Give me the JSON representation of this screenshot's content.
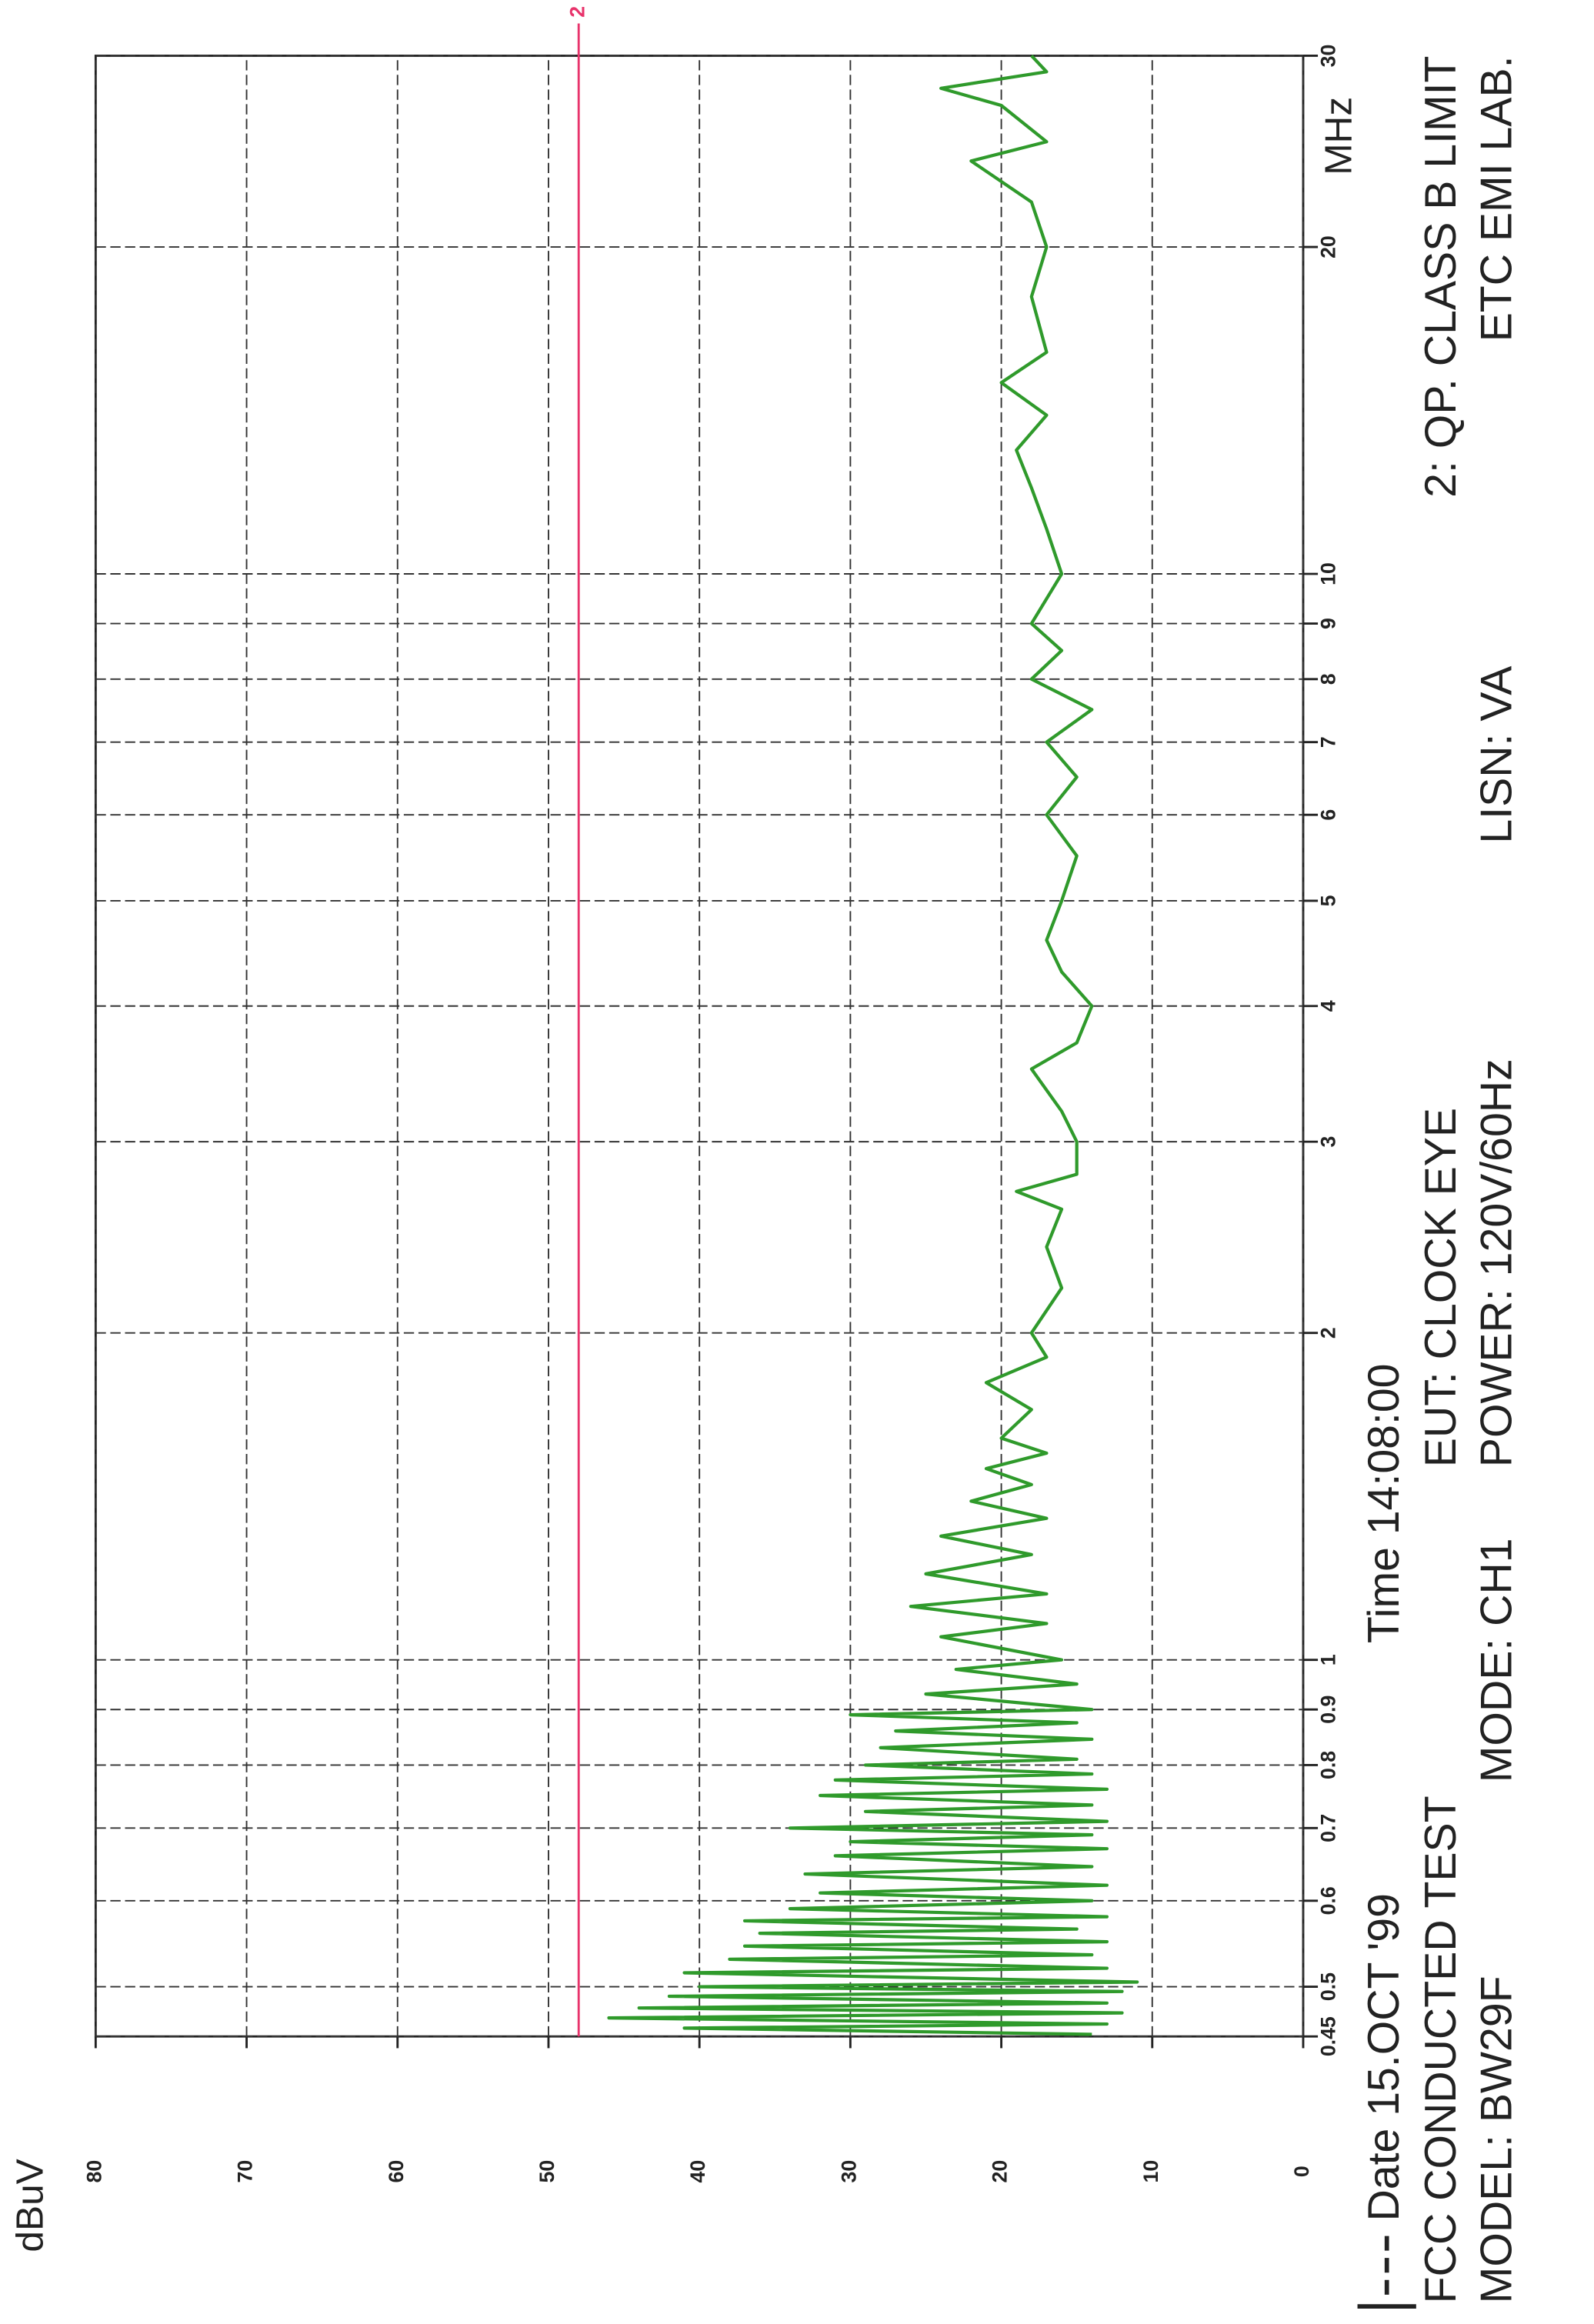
{
  "chart_data": {
    "type": "line",
    "ylabel": "dBuV",
    "xlabel": "MHz",
    "xlog": true,
    "grid": true,
    "xlim": [
      0.45,
      30
    ],
    "ylim": [
      0,
      80
    ],
    "xticks": [
      0.45,
      0.5,
      0.6,
      0.7,
      0.8,
      0.9,
      1,
      2,
      3,
      4,
      5,
      6,
      7,
      8,
      9,
      10,
      20,
      30
    ],
    "yticks": [
      0,
      10,
      20,
      30,
      40,
      50,
      60,
      70,
      80
    ],
    "color": "#2f9a2b",
    "x": [
      0.452,
      0.458,
      0.462,
      0.468,
      0.473,
      0.478,
      0.483,
      0.49,
      0.495,
      0.5,
      0.505,
      0.515,
      0.52,
      0.53,
      0.535,
      0.545,
      0.55,
      0.56,
      0.565,
      0.575,
      0.58,
      0.59,
      0.6,
      0.61,
      0.62,
      0.635,
      0.645,
      0.66,
      0.67,
      0.68,
      0.69,
      0.7,
      0.71,
      0.725,
      0.735,
      0.75,
      0.76,
      0.775,
      0.785,
      0.8,
      0.81,
      0.83,
      0.845,
      0.86,
      0.875,
      0.89,
      0.9,
      0.93,
      0.95,
      0.98,
      1.0,
      1.05,
      1.08,
      1.12,
      1.15,
      1.2,
      1.25,
      1.3,
      1.35,
      1.4,
      1.45,
      1.5,
      1.55,
      1.6,
      1.7,
      1.8,
      1.9,
      2.0,
      2.2,
      2.4,
      2.6,
      2.7,
      2.8,
      3.0,
      3.2,
      3.5,
      3.7,
      4.0,
      4.3,
      4.6,
      5.0,
      5.5,
      6.0,
      6.5,
      7.0,
      7.5,
      8.0,
      8.5,
      9.0,
      10,
      11,
      12,
      13,
      14,
      15,
      16,
      18,
      20,
      22,
      24,
      25,
      27,
      28,
      29,
      30
    ],
    "values": [
      14,
      41,
      13,
      46,
      12,
      44,
      13,
      42,
      12,
      40,
      11,
      41,
      13,
      38,
      14,
      37,
      13,
      36,
      15,
      37,
      13,
      34,
      14,
      32,
      13,
      33,
      14,
      31,
      13,
      30,
      14,
      34,
      13,
      29,
      14,
      32,
      13,
      31,
      14,
      29,
      15,
      28,
      14,
      27,
      15,
      30,
      14,
      25,
      15,
      23,
      16,
      24,
      17,
      26,
      17,
      25,
      18,
      24,
      17,
      22,
      18,
      21,
      17,
      20,
      18,
      21,
      17,
      18,
      16,
      17,
      16,
      19,
      15,
      15,
      16,
      18,
      15,
      14,
      16,
      17,
      16,
      15,
      17,
      15,
      17,
      14,
      18,
      16,
      18,
      16,
      17,
      18,
      19,
      17,
      20,
      17,
      18,
      17,
      18,
      22,
      17,
      20,
      24,
      17,
      18
    ],
    "limit": {
      "label": "2",
      "value": 48,
      "color": "#e8336b"
    },
    "annotations": [
      "Date 15.OCT '99",
      "Time 14:08:00",
      "FCC CONDUCTED TEST",
      "MODEL: BW29F",
      "MODE: CH1",
      "EUT: CLOCK EYE",
      "POWER: 120V/60Hz",
      "2: QP. CLASS B LIMIT",
      "LISN: VA",
      "ETC EMI LAB."
    ]
  }
}
